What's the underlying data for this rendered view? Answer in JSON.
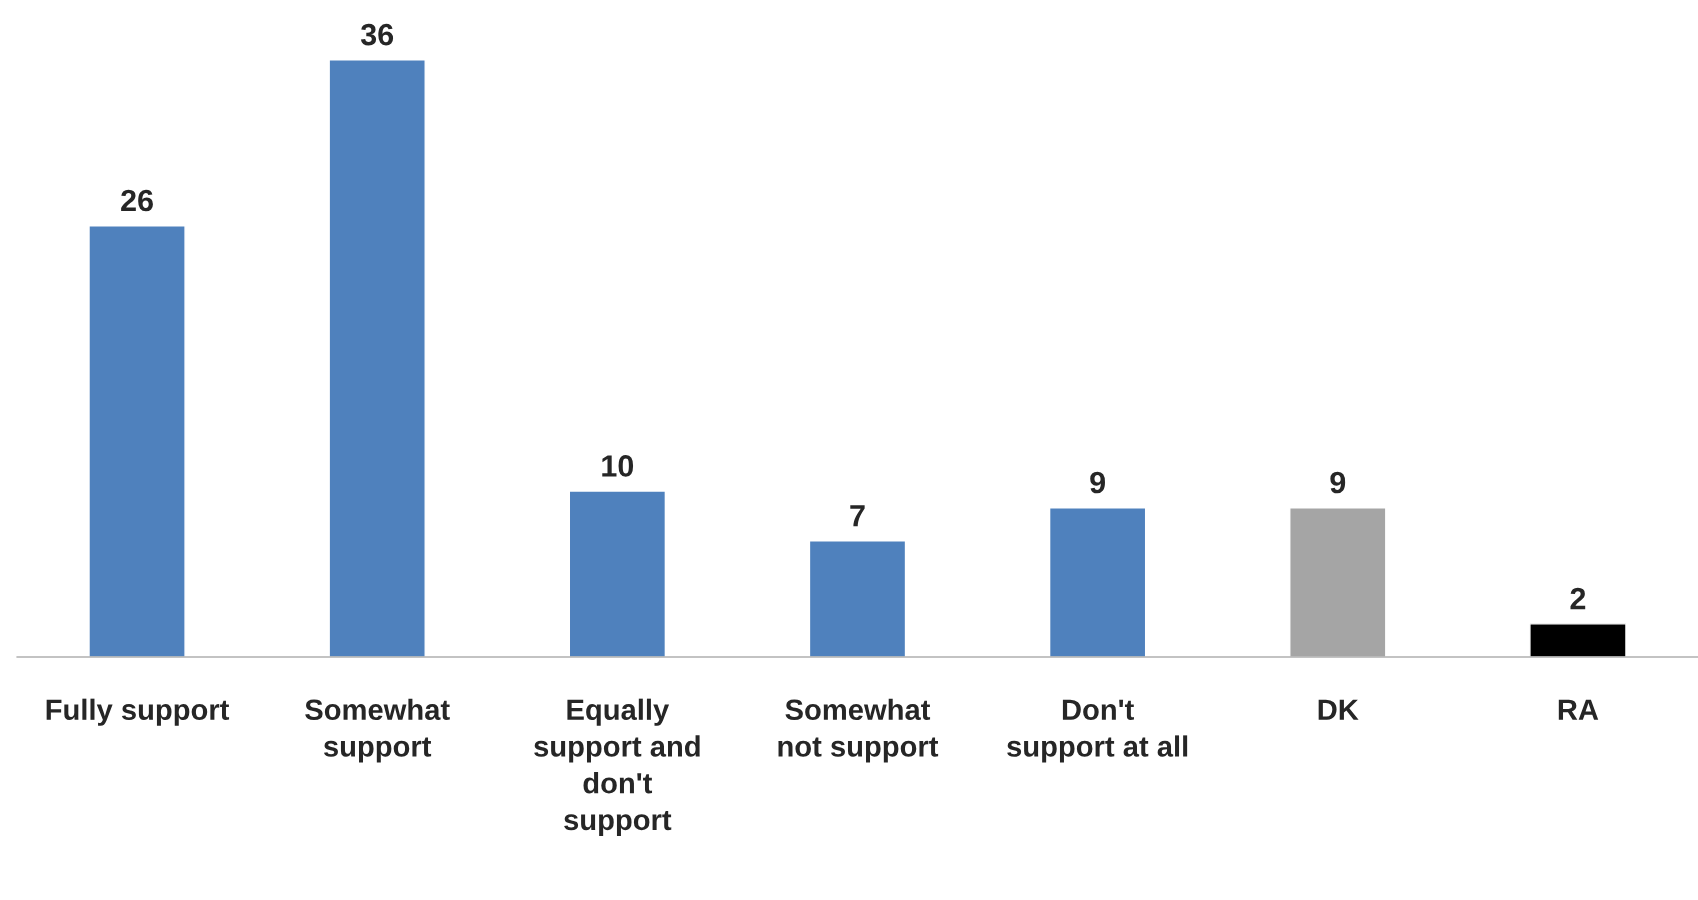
{
  "chart_data": {
    "type": "bar",
    "categories": [
      "Fully support",
      "Somewhat\nsupport",
      "Equally\nsupport and\ndon't\nsupport",
      "Somewhat\nnot support",
      "Don't\nsupport at all",
      "DK",
      "RA"
    ],
    "values": [
      26,
      36,
      10,
      7,
      9,
      9,
      2
    ],
    "colors": [
      "#4f81bd",
      "#4f81bd",
      "#4f81bd",
      "#4f81bd",
      "#4f81bd",
      "#a5a5a5",
      "#000000"
    ],
    "data_labels": true,
    "grid": false,
    "legend": false,
    "tick_labels": "x"
  }
}
